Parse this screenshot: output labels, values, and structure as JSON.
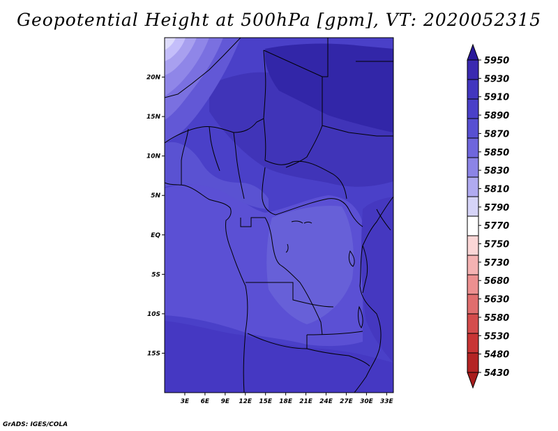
{
  "title": "Geopotential Height at 500hPa [gpm], VT: 2020052315",
  "credit": "GrADS: IGES/COLA",
  "map": {
    "lon_range": [
      0,
      34
    ],
    "lat_range": [
      -20,
      25
    ],
    "lon_ticks": [
      3,
      6,
      9,
      12,
      15,
      18,
      21,
      24,
      27,
      30,
      33
    ],
    "lon_tick_labels": [
      "3E",
      "6E",
      "9E",
      "12E",
      "15E",
      "18E",
      "21E",
      "24E",
      "27E",
      "30E",
      "33E"
    ],
    "lat_ticks": [
      20,
      15,
      10,
      5,
      0,
      -5,
      -10,
      -15
    ],
    "lat_tick_labels": [
      "20N",
      "15N",
      "10N",
      "5N",
      "EQ",
      "5S",
      "10S",
      "15S"
    ]
  },
  "colorbar": {
    "levels": [
      "5950",
      "5930",
      "5910",
      "5890",
      "5870",
      "5850",
      "5830",
      "5810",
      "5790",
      "5770",
      "5750",
      "5730",
      "5680",
      "5630",
      "5580",
      "5530",
      "5480",
      "5430"
    ],
    "colors": [
      "#2a1a9a",
      "#3a2ab0",
      "#4236bf",
      "#4a40c8",
      "#5850d2",
      "#6f66dc",
      "#8c84e6",
      "#b0aaf0",
      "#d6d4f8",
      "#ffffff",
      "#fbd6d6",
      "#f4b2b2",
      "#ec9090",
      "#e06e6e",
      "#d44c4c",
      "#c83434",
      "#b42424",
      "#a81c1c"
    ]
  }
}
